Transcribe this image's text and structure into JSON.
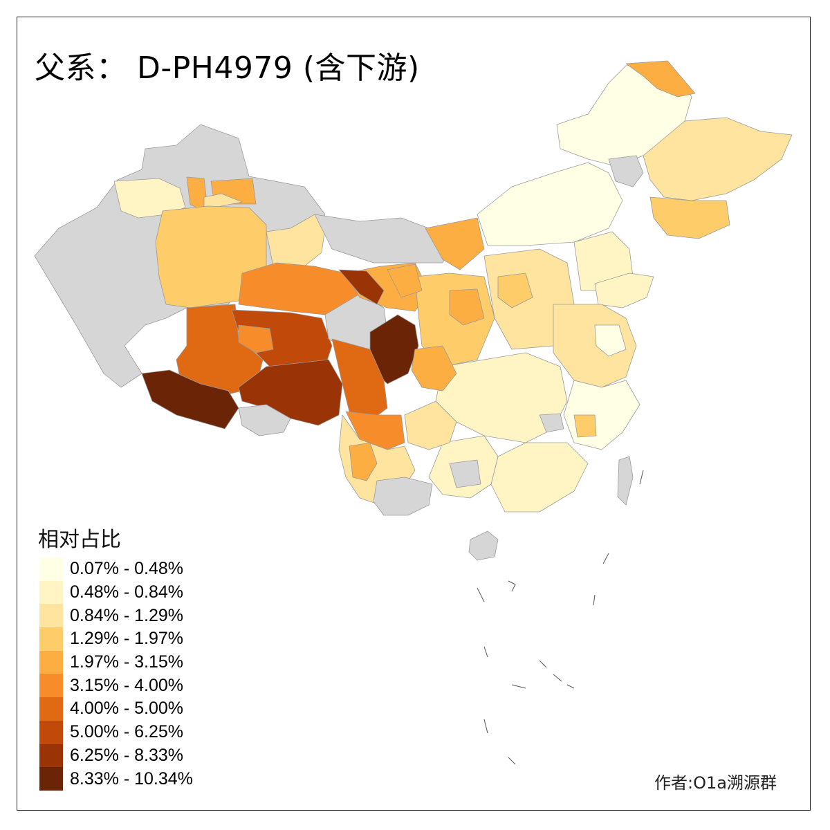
{
  "title": "父系： D-PH4979 (含下游)",
  "legend": {
    "title": "相对占比",
    "bins": [
      {
        "label": "0.07% - 0.48%",
        "color": "#FFFFE6"
      },
      {
        "label": "0.48% - 0.84%",
        "color": "#FFF5C4"
      },
      {
        "label": "0.84% - 1.29%",
        "color": "#FEE49E"
      },
      {
        "label": "1.29% - 1.97%",
        "color": "#FECD6A"
      },
      {
        "label": "1.97% - 3.15%",
        "color": "#FDAE43"
      },
      {
        "label": "3.15% - 4.00%",
        "color": "#F78C2A"
      },
      {
        "label": "4.00% - 5.00%",
        "color": "#E06A14"
      },
      {
        "label": "5.00% - 6.25%",
        "color": "#C1490A"
      },
      {
        "label": "6.25% - 8.33%",
        "color": "#9A3406"
      },
      {
        "label": "8.33% - 10.34%",
        "color": "#6B2506"
      }
    ],
    "no_data_color": "#D6D6D6"
  },
  "credit": "作者:O1a溯源群"
}
